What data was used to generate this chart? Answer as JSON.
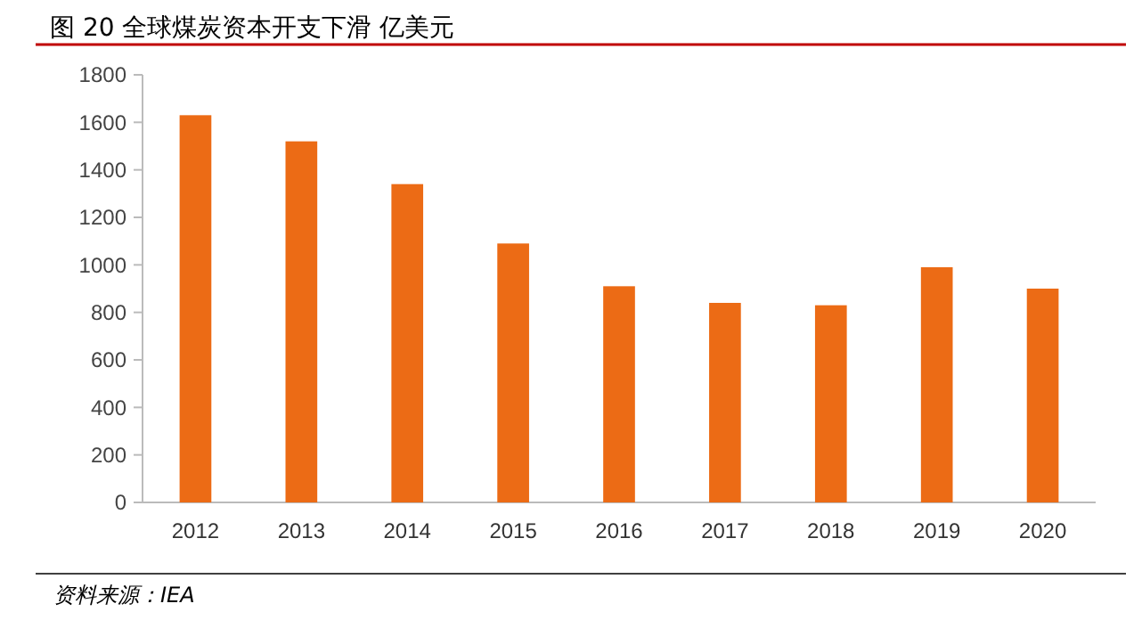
{
  "chart_data": {
    "type": "bar",
    "title": "图 20  全球煤炭资本开支下滑  亿美元",
    "categories": [
      "2012",
      "2013",
      "2014",
      "2015",
      "2016",
      "2017",
      "2018",
      "2019",
      "2020"
    ],
    "values": [
      1630,
      1520,
      1340,
      1090,
      910,
      840,
      830,
      990,
      900
    ],
    "color": "#ec6b15",
    "ylim": [
      0,
      1800
    ],
    "yticks": [
      0,
      200,
      400,
      600,
      800,
      1000,
      1200,
      1400,
      1600,
      1800
    ],
    "grid": false,
    "annotations": [
      "资料来源：IEA"
    ]
  }
}
